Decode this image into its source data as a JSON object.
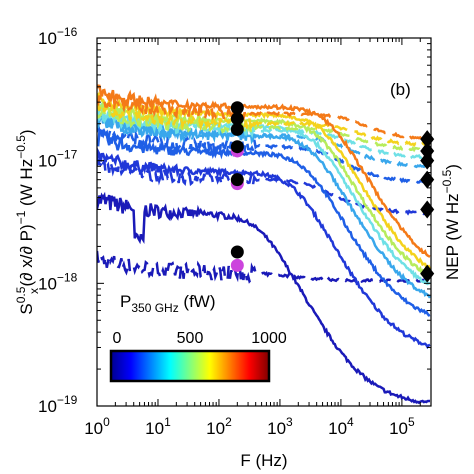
{
  "chart_data": {
    "type": "line",
    "panel_label": "(b)",
    "x_axis": {
      "label": "F (Hz)",
      "scale": "log",
      "range": [
        1,
        300000
      ],
      "ticks": [
        {
          "value": 1,
          "base": "10",
          "exp": "0"
        },
        {
          "value": 10,
          "base": "10",
          "exp": "1"
        },
        {
          "value": 100,
          "base": "10",
          "exp": "2"
        },
        {
          "value": 1000,
          "base": "10",
          "exp": "3"
        },
        {
          "value": 10000,
          "base": "10",
          "exp": "4"
        },
        {
          "value": 100000,
          "base": "10",
          "exp": "5"
        }
      ]
    },
    "y_axis": {
      "label_parts": {
        "s": "S",
        "sub": "x",
        "sup": "0.5",
        "mid": "(∂ x/∂ P)",
        "pow": "−1",
        "units_open": " (W Hz",
        "units_pow": "−0.5",
        "units_close": ")"
      },
      "scale": "log",
      "range": [
        1e-19,
        1e-16
      ],
      "ticks": [
        {
          "value": 1e-16,
          "base": "10",
          "exp": "−16"
        },
        {
          "value": 1e-17,
          "base": "10",
          "exp": "−17"
        },
        {
          "value": 1e-18,
          "base": "10",
          "exp": "−18"
        },
        {
          "value": 1e-19,
          "base": "10",
          "exp": "−19"
        }
      ]
    },
    "right_axis_label_parts": {
      "main": "NEP (W Hz",
      "pow": "−0.5",
      "close": ")"
    },
    "colorbar": {
      "title": "P",
      "title_sub": "350 GHz",
      "title_units": " (fW)",
      "range": [
        0,
        1000
      ],
      "ticks": [
        {
          "value": 0,
          "label": "0"
        },
        {
          "value": 500,
          "label": "500"
        },
        {
          "value": 1000,
          "label": "1000"
        }
      ],
      "colormap": [
        "#00008f",
        "#0000ff",
        "#0080ff",
        "#00ffff",
        "#80ff80",
        "#ffff00",
        "#ff8000",
        "#ff0000",
        "#800000"
      ]
    },
    "series": [
      {
        "power_fw": 10,
        "color": "#1a1ab8",
        "low_level": 3.6e-18,
        "knee": 500,
        "high_level": 1e-19,
        "dashed_level": 1.2e-18,
        "dashed_high": 1.05e-18,
        "noise": 0.08,
        "dip_freq": 5,
        "dip_depth": 0.55
      },
      {
        "power_fw": 120,
        "color": "#2038d8",
        "low_level": 8e-18,
        "knee": 1800,
        "high_level": 2.6e-19,
        "dashed_level": 7e-18,
        "dashed_high": 3.7e-18,
        "noise": 0.06
      },
      {
        "power_fw": 250,
        "color": "#1f5fe6",
        "low_level": 1.15e-17,
        "knee": 2800,
        "high_level": 4.5e-19,
        "dashed_level": 1.3e-17,
        "dashed_high": 6.5e-18,
        "noise": 0.07
      },
      {
        "power_fw": 400,
        "color": "#39a7ec",
        "low_level": 1.6e-17,
        "knee": 3500,
        "high_level": 6e-19,
        "dashed_level": 1.6e-17,
        "dashed_high": 8.8e-18,
        "noise": 0.06
      },
      {
        "power_fw": 550,
        "color": "#6fe0e6",
        "low_level": 1.9e-17,
        "knee": 4000,
        "high_level": 7.2e-19,
        "dashed_level": 1.75e-17,
        "dashed_high": 1.05e-17,
        "noise": 0.05
      },
      {
        "power_fw": 700,
        "color": "#b7ec5c",
        "low_level": 2.1e-17,
        "knee": 4600,
        "high_level": 8.2e-19,
        "dashed_level": 1.85e-17,
        "dashed_high": 1.2e-17,
        "noise": 0.05
      },
      {
        "power_fw": 850,
        "color": "#f4d21c",
        "low_level": 2.35e-17,
        "knee": 5400,
        "high_level": 9e-19,
        "dashed_level": 2e-17,
        "dashed_high": 1.32e-17,
        "noise": 0.05
      },
      {
        "power_fw": 1000,
        "color": "#f47a18",
        "low_level": 2.75e-17,
        "knee": 6500,
        "high_level": 1.05e-18,
        "dashed_level": 2.4e-17,
        "dashed_high": 1.45e-17,
        "noise": 0.06
      }
    ],
    "markers": {
      "circle_freq": 200,
      "black_circles": [
        2.7e-17,
        2.2e-17,
        1.8e-17,
        1.3e-17,
        7e-18,
        1.8e-18
      ],
      "magenta_circles": [
        1.2e-17,
        6.5e-18,
        1.4e-18
      ],
      "diamond_freq": 260000,
      "diamonds": [
        1.5e-17,
        1.2e-17,
        1e-17,
        7e-18,
        4e-18,
        1.2e-18
      ]
    }
  }
}
